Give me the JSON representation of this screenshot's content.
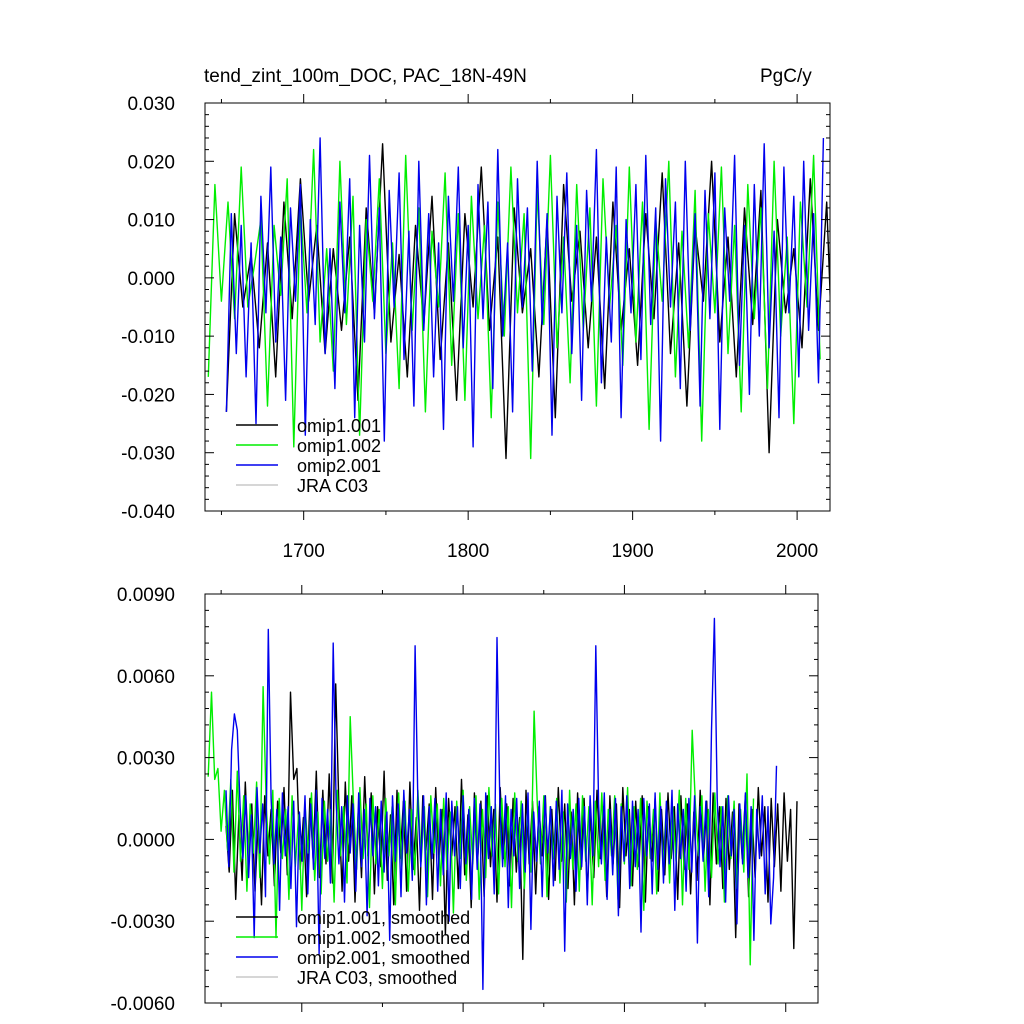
{
  "chart_data": [
    {
      "type": "line",
      "title": "tend_zint_100m_DOC, PAC_18N-49N",
      "units": "PgC/y",
      "xlim": [
        1640,
        2020
      ],
      "ylim": [
        -0.04,
        0.03
      ],
      "xticks": [
        1700,
        1800,
        1900,
        2000
      ],
      "xtick_labels": [
        "1700",
        "1800",
        "1900",
        "2000"
      ],
      "yticks": [
        -0.04,
        -0.03,
        -0.02,
        -0.01,
        0.0,
        0.01,
        0.02,
        0.03
      ],
      "ytick_labels": [
        "-0.040",
        "-0.030",
        "-0.020",
        "-0.010",
        "0.000",
        "0.010",
        "0.020",
        "0.030"
      ],
      "grid": false,
      "legend_position": "bottom-left",
      "series": [
        {
          "name": "omip1.001",
          "color": "#000000",
          "x_start": 1653,
          "x_step": 5,
          "values": [
            -0.023,
            0.011,
            -0.005,
            0.004,
            -0.012,
            0.006,
            -0.017,
            0.013,
            -0.007,
            0.017,
            -0.004,
            0.009,
            -0.013,
            0.005,
            -0.009,
            0.007,
            -0.021,
            0.012,
            -0.006,
            0.023,
            -0.011,
            0.004,
            -0.017,
            0.009,
            -0.008,
            0.014,
            -0.014,
            0.006,
            -0.021,
            0.011,
            -0.005,
            0.019,
            -0.009,
            0.007,
            -0.031,
            0.012,
            -0.006,
            0.005,
            -0.017,
            0.01,
            -0.024,
            0.016,
            -0.004,
            0.008,
            -0.012,
            0.007,
            -0.019,
            0.013,
            -0.009,
            0.005,
            -0.015,
            0.011,
            -0.007,
            0.018,
            -0.013,
            0.006,
            -0.022,
            0.009,
            -0.004,
            0.02,
            -0.011,
            0.007,
            -0.017,
            0.012,
            -0.008,
            0.015,
            -0.03,
            0.01,
            -0.006,
            0.005,
            -0.012,
            0.017,
            -0.009,
            0.013,
            -0.025
          ]
        },
        {
          "name": "omip1.002",
          "color": "#00ee00",
          "x_start": 1642,
          "x_step": 4,
          "values": [
            -0.017,
            0.016,
            -0.004,
            0.013,
            -0.007,
            0.019,
            -0.005,
            0.002,
            0.01,
            -0.022,
            0.009,
            -0.003,
            0.017,
            -0.029,
            0.012,
            -0.006,
            0.022,
            -0.011,
            0.005,
            -0.016,
            0.02,
            -0.008,
            0.014,
            -0.027,
            0.01,
            -0.004,
            0.017,
            -0.013,
            0.006,
            -0.019,
            0.021,
            -0.009,
            0.012,
            -0.023,
            0.008,
            -0.005,
            0.018,
            -0.015,
            0.011,
            -0.021,
            0.014,
            -0.007,
            0.009,
            -0.024,
            0.013,
            -0.01,
            0.019,
            -0.006,
            0.011,
            -0.031,
            0.015,
            -0.008,
            0.021,
            -0.012,
            0.007,
            -0.018,
            0.016,
            -0.009,
            0.012,
            -0.022,
            0.017,
            -0.005,
            0.009,
            -0.015,
            0.019,
            -0.011,
            0.013,
            -0.026,
            0.01,
            -0.004,
            0.02,
            -0.017,
            0.008,
            -0.012,
            0.015,
            -0.028,
            0.011,
            -0.006,
            0.019,
            -0.013,
            0.009,
            -0.023,
            0.016,
            -0.007,
            0.012,
            -0.019,
            0.02,
            -0.01,
            0.007,
            -0.025,
            0.013,
            -0.005,
            0.021,
            -0.014
          ]
        },
        {
          "name": "omip2.001",
          "color": "#0000ee",
          "x_start": 1653,
          "x_step": 3,
          "values": [
            -0.023,
            0.011,
            -0.013,
            0.009,
            -0.017,
            0.006,
            -0.025,
            0.014,
            -0.006,
            0.019,
            -0.011,
            0.007,
            -0.021,
            0.012,
            -0.004,
            0.016,
            -0.027,
            0.01,
            -0.008,
            0.024,
            -0.013,
            0.005,
            -0.019,
            0.013,
            -0.006,
            0.017,
            -0.024,
            0.009,
            -0.011,
            0.021,
            -0.007,
            0.012,
            -0.028,
            0.015,
            -0.005,
            0.018,
            -0.014,
            0.008,
            -0.022,
            0.02,
            -0.009,
            0.011,
            -0.017,
            0.006,
            -0.026,
            0.014,
            -0.004,
            0.019,
            -0.012,
            0.009,
            -0.029,
            0.016,
            -0.007,
            0.013,
            -0.019,
            0.022,
            -0.01,
            0.006,
            -0.023,
            0.017,
            -0.005,
            0.012,
            -0.016,
            0.02,
            -0.008,
            0.011,
            -0.027,
            0.014,
            -0.006,
            0.018,
            -0.013,
            0.009,
            -0.021,
            0.015,
            -0.004,
            0.022,
            -0.018,
            0.007,
            -0.011,
            0.019,
            -0.024,
            0.01,
            -0.006,
            0.016,
            -0.014,
            0.021,
            -0.008,
            0.012,
            -0.028,
            0.017,
            -0.005,
            0.013,
            -0.019,
            0.02,
            -0.009,
            0.011,
            -0.022,
            0.015,
            -0.007,
            0.018,
            -0.026,
            0.012,
            -0.004,
            0.021,
            -0.015,
            0.009,
            -0.02,
            0.016,
            -0.01,
            0.023,
            -0.012,
            0.008,
            -0.024,
            0.019,
            -0.006,
            0.014,
            -0.017,
            0.02,
            -0.009,
            0.011,
            -0.018,
            0.024
          ]
        },
        {
          "name": "JRA C03",
          "color": "#c8c8c8",
          "x_start": 1958,
          "x_step": 1,
          "values": []
        }
      ]
    },
    {
      "type": "line",
      "title": "",
      "xlim": [
        1640,
        2020
      ],
      "ylim": [
        -0.006,
        0.009
      ],
      "xticks": [
        1700,
        1800,
        1900,
        2000
      ],
      "xtick_labels": [],
      "yticks": [
        -0.006,
        -0.003,
        0.0,
        0.003,
        0.006,
        0.009
      ],
      "ytick_labels": [
        "-0.0060",
        "-0.0030",
        "0.0000",
        "0.0030",
        "0.0060",
        "0.0090"
      ],
      "grid": false,
      "legend_position": "bottom-left",
      "series": [
        {
          "name": "omip1.001, smoothed",
          "color": "#000000",
          "x_start": 1653,
          "x_step": 2,
          "values": [
            0.0005,
            -0.0012,
            0.0018,
            -0.0022,
            0.0009,
            -0.0015,
            0.0021,
            -0.0008,
            0.0013,
            -0.0019,
            0.0007,
            -0.0024,
            0.0016,
            -0.0006,
            0.0011,
            -0.0017,
            0.0014,
            -0.0005,
            0.0019,
            -0.0013,
            0.0054,
            0.0022,
            0.0026,
            -0.0011,
            0.0008,
            -0.0021,
            0.0015,
            -0.0007,
            0.0025,
            -0.0014,
            0.0018,
            -0.0009,
            0.0024,
            -0.0016,
            0.0057,
            0.0012,
            -0.0019,
            0.0021,
            -0.0008,
            0.0016,
            -0.0023,
            0.0011,
            -0.0014,
            0.0023,
            -0.0006,
            0.0017,
            -0.002,
            0.0012,
            -0.001,
            0.0025,
            -0.0015,
            0.0009,
            -0.0024,
            0.0018,
            -0.0007,
            0.0014,
            -0.0019,
            0.0021,
            -0.0011,
            0.0008,
            -0.0026,
            0.0016,
            -0.0004,
            0.0013,
            -0.0022,
            0.0019,
            -0.0009,
            0.0011,
            -0.0035,
            0.0015,
            -0.0006,
            0.0012,
            -0.0018,
            0.0022,
            -0.0013,
            0.0009,
            -0.0025,
            0.0017,
            -0.0008,
            0.0014,
            -0.0021,
            0.0016,
            -0.001,
            0.0011,
            -0.0023,
            0.0019,
            -0.0007,
            0.0013,
            -0.0017,
            0.0015,
            -0.0012,
            0.0008,
            -0.0044,
            0.0018,
            -0.0009,
            0.0014,
            -0.002,
            0.0012,
            -0.0006,
            0.0016,
            -0.0022,
            0.0011,
            -0.0015,
            0.0019,
            -0.0008,
            0.0013,
            -0.0018,
            0.001,
            -0.0024,
            0.0017,
            -0.0011,
            0.0015,
            -0.002,
            0.0009,
            -0.0014,
            0.0018,
            -0.0007,
            0.0012,
            -0.0021,
            0.0016,
            -0.0009,
            0.0013,
            -0.0025,
            0.0019,
            -0.0006,
            0.0011,
            -0.0017,
            0.0014,
            -0.001,
            0.0016,
            -0.0023,
            0.0012,
            -0.0008,
            0.0015,
            -0.0019,
            0.0011,
            -0.0013,
            0.0017,
            -0.0007,
            0.0012,
            -0.0022,
            0.0016,
            -0.0011,
            0.0013,
            -0.002,
            0.001,
            -0.0015,
            0.0018,
            -0.0008,
            0.0014,
            -0.0024,
            0.0017,
            -0.0009,
            0.0012,
            -0.0018,
            0.0015,
            -0.0011,
            0.001,
            -0.0036,
            0.0013,
            -0.0007,
            0.0016,
            -0.0021,
            0.0011,
            -0.0014,
            0.0019,
            -0.0006,
            0.0012,
            -0.0023,
            0.0015,
            -0.001,
            0.0013,
            -0.0019,
            0.0017,
            -0.0008,
            0.0011,
            -0.004,
            0.0014
          ]
        },
        {
          "name": "omip1.002, smoothed",
          "color": "#00ee00",
          "x_start": 1642,
          "x_step": 2,
          "values": [
            0.0023,
            0.0054,
            0.0022,
            0.0026,
            0.0003,
            0.0018,
            -0.0004,
            0.0022,
            -0.0012,
            0.0025,
            -0.0008,
            0.0016,
            -0.0019,
            0.0013,
            -0.0005,
            0.0021,
            -0.0014,
            0.0056,
            0.0012,
            -0.0009,
            0.0018,
            -0.0036,
            0.0015,
            -0.0007,
            0.0011,
            -0.0022,
            0.0016,
            -0.001,
            0.0009,
            -0.0026,
            0.0013,
            -0.0005,
            0.0017,
            -0.0015,
            0.001,
            -0.002,
            0.0014,
            -0.0008,
            0.0011,
            -0.0023,
            0.0018,
            -0.0006,
            0.0012,
            -0.0016,
            0.0045,
            0.0014,
            -0.0011,
            0.0019,
            -0.0007,
            0.0013,
            -0.0025,
            0.0016,
            -0.0009,
            0.0011,
            -0.0018,
            0.0015,
            -0.0006,
            0.0012,
            -0.0024,
            0.0017,
            -0.001,
            0.0014,
            -0.0019,
            0.0011,
            -0.0013,
            0.0018,
            -0.0008,
            0.0012,
            -0.0021,
            0.0016,
            -0.0005,
            0.0013,
            -0.0017,
            0.0015,
            -0.0011,
            0.001,
            -0.0027,
            0.0014,
            -0.0007,
            0.0018,
            -0.0015,
            0.0012,
            -0.0009,
            0.0016,
            -0.0022,
            0.0011,
            -0.0014,
            0.0019,
            -0.0006,
            0.0013,
            -0.002,
            0.0015,
            -0.001,
            0.0012,
            -0.0025,
            0.0017,
            -0.0008,
            0.0014,
            -0.0018,
            0.0011,
            -0.0012,
            0.0047,
            0.0013,
            -0.0009,
            0.0016,
            -0.0021,
            0.0012,
            -0.0007,
            0.0015,
            -0.0016,
            0.001,
            -0.0023,
            0.0018,
            -0.0011,
            0.0013,
            -0.0019,
            0.0016,
            -0.0008,
            0.0012,
            -0.0024,
            0.0014,
            -0.001,
            0.0017,
            -0.0015,
            0.0011,
            -0.0006,
            0.0016,
            -0.0022,
            0.0013,
            -0.0009,
            0.0019,
            -0.0017,
            0.0012,
            -0.0011,
            0.0015,
            -0.0026,
            0.0014,
            -0.0007,
            0.0011,
            -0.002,
            0.0017,
            -0.001,
            0.0013,
            -0.0016,
            0.0012,
            -0.0008,
            0.0018,
            -0.0024,
            0.0015,
            -0.0011,
            0.004,
            0.0013,
            -0.0006,
            0.0016,
            -0.0019,
            0.0011,
            -0.0014,
            0.0017,
            -0.0009,
            0.0012,
            -0.0023,
            0.0016,
            -0.0007,
            0.0014,
            -0.0018,
            0.0011,
            -0.0012,
            0.0024,
            -0.0046,
            0.0015
          ]
        },
        {
          "name": "omip2.001, smoothed",
          "color": "#0000ee",
          "x_start": 1653,
          "x_step": 1.75,
          "values": [
            0.0018,
            -0.001,
            0.0033,
            0.0046,
            0.004,
            0.0012,
            -0.0007,
            0.0016,
            -0.0014,
            0.0009,
            -0.0036,
            0.0019,
            -0.0005,
            0.0013,
            -0.0021,
            0.0077,
            0.0015,
            -0.0009,
            0.0011,
            -0.0026,
            0.0017,
            -0.0006,
            0.0012,
            -0.0018,
            0.0014,
            -0.0032,
            0.001,
            -0.0008,
            0.0016,
            -0.002,
            0.0013,
            -0.0011,
            0.0018,
            -0.0042,
            0.0015,
            -0.0007,
            0.0011,
            -0.0016,
            0.0072,
            0.0014,
            -0.0009,
            0.0012,
            -0.0023,
            0.0016,
            -0.0005,
            0.0013,
            -0.0019,
            0.0017,
            -0.001,
            0.0011,
            -0.0028,
            0.0015,
            -0.0006,
            0.0012,
            -0.0017,
            0.0014,
            -0.0012,
            0.001,
            -0.0037,
            0.0016,
            -0.0008,
            0.0013,
            -0.0021,
            0.0018,
            -0.0005,
            0.0011,
            -0.0015,
            0.0071,
            0.0013,
            -0.001,
            0.0016,
            -0.0024,
            0.0012,
            -0.0007,
            0.0015,
            -0.0019,
            0.0011,
            -0.0013,
            0.0017,
            -0.003,
            0.0014,
            -0.0006,
            0.0012,
            -0.0018,
            0.0016,
            -0.0009,
            0.0011,
            -0.0022,
            0.0015,
            -0.0011,
            0.0013,
            -0.0055,
            0.0017,
            -0.0007,
            0.0012,
            -0.002,
            0.0074,
            0.0014,
            -0.001,
            0.0016,
            -0.0025,
            0.0011,
            -0.0006,
            0.0015,
            -0.0018,
            0.0013,
            -0.0012,
            0.0017,
            -0.0033,
            0.001,
            -0.0008,
            0.0014,
            -0.0021,
            0.0016,
            -0.0005,
            0.0012,
            -0.0017,
            0.0014,
            -0.0011,
            0.0018,
            -0.0041,
            0.0013,
            -0.0007,
            0.0011,
            -0.0019,
            0.0015,
            -0.001,
            0.0012,
            -0.0024,
            0.0016,
            -0.0006,
            0.0071,
            0.0013,
            -0.0009,
            0.0017,
            -0.0022,
            0.0011,
            -0.0013,
            0.0015,
            -0.0028,
            0.0012,
            -0.0008,
            0.0016,
            -0.0018,
            0.0014,
            -0.001,
            0.0011,
            -0.0034,
            0.0015,
            -0.0006,
            0.0013,
            -0.002,
            0.0017,
            -0.0011,
            0.0012,
            -0.0016,
            0.0014,
            -0.0009,
            0.0018,
            -0.0026,
            0.0013,
            -0.0007,
            0.0011,
            -0.0019,
            0.0015,
            -0.0012,
            0.0016,
            -0.0038,
            0.0012,
            -0.0008,
            0.0014,
            -0.0021,
            0.004,
            0.0081,
            0.0015,
            -0.001,
            0.0012,
            -0.0023,
            0.0016,
            -0.0006,
            0.0011,
            -0.0031,
            0.0013,
            -0.0009,
            0.0017,
            -0.0014,
            0.0012,
            -0.0037,
            0.0011,
            -0.0007,
            0.0016,
            -0.002,
            0.0012,
            -0.0031,
            -0.0014,
            0.0027
          ]
        },
        {
          "name": "JRA C03, smoothed",
          "color": "#c8c8c8",
          "x_start": 1958,
          "x_step": 1,
          "values": []
        }
      ]
    }
  ]
}
